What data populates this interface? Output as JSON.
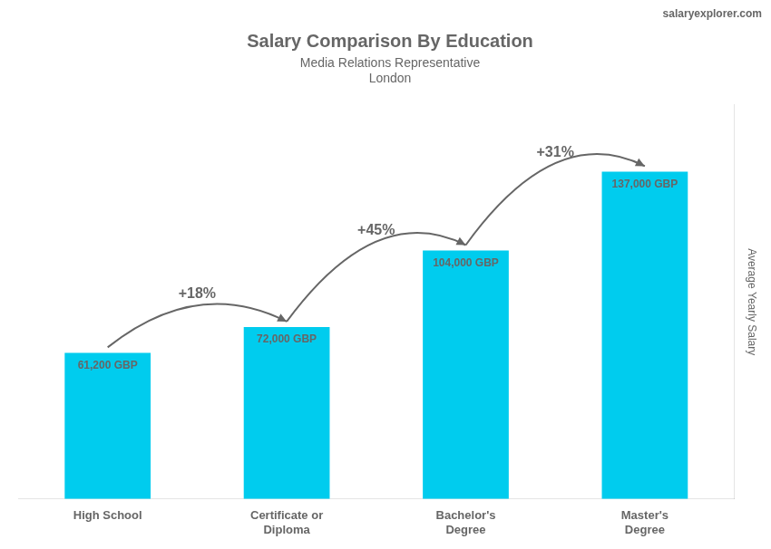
{
  "chart_data": {
    "type": "bar",
    "title": "Salary Comparison By Education",
    "subtitle": [
      "Media Relations Representative",
      "London"
    ],
    "ylabel": "Average Yearly Salary",
    "categories": [
      "High School",
      "Certificate or\nDiploma",
      "Bachelor's\nDegree",
      "Master's\nDegree"
    ],
    "values": [
      61200,
      72000,
      104000,
      137000
    ],
    "value_labels": [
      "61,200 GBP",
      "72,000 GBP",
      "104,000 GBP",
      "137,000 GBP"
    ],
    "data_labels": true,
    "color": "#00ccee",
    "ylim": [
      0,
      165000
    ],
    "tick_labels": "x",
    "grid": false,
    "annotations": [
      "+18%",
      "+45%",
      "+31%",
      "salaryexplorer.com"
    ]
  }
}
